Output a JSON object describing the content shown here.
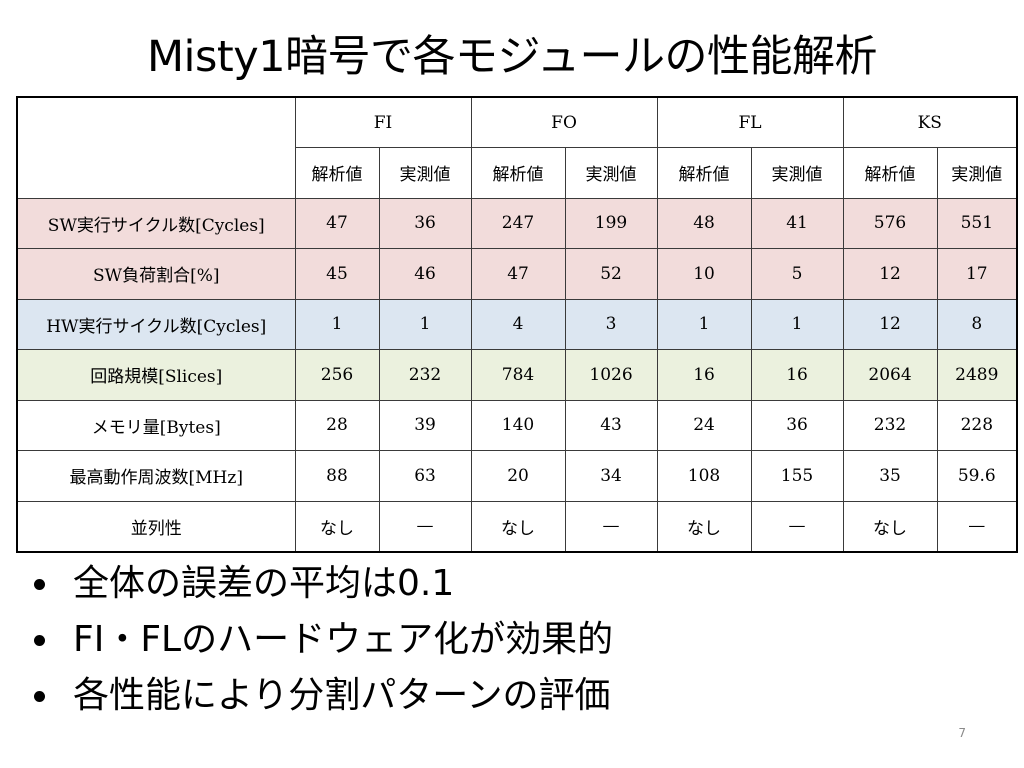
{
  "slide": {
    "title": "Misty1暗号で各モジュールの性能解析",
    "page_number": "7"
  },
  "table": {
    "modules": [
      "FI",
      "FO",
      "FL",
      "KS"
    ],
    "sub_headers": [
      "解析値",
      "実測値"
    ],
    "rows": [
      {
        "label": "SW実行サイクル数[Cycles]",
        "values": [
          "47",
          "36",
          "247",
          "199",
          "48",
          "41",
          "576",
          "551"
        ]
      },
      {
        "label": "SW負荷割合[%]",
        "values": [
          "45",
          "46",
          "47",
          "52",
          "10",
          "5",
          "12",
          "17"
        ]
      },
      {
        "label": "HW実行サイクル数[Cycles]",
        "values": [
          "1",
          "1",
          "4",
          "3",
          "1",
          "1",
          "12",
          "8"
        ]
      },
      {
        "label": "回路規模[Slices]",
        "values": [
          "256",
          "232",
          "784",
          "1026",
          "16",
          "16",
          "2064",
          "2489"
        ]
      },
      {
        "label": "メモリ量[Bytes]",
        "values": [
          "28",
          "39",
          "140",
          "43",
          "24",
          "36",
          "232",
          "228"
        ]
      },
      {
        "label": "最高動作周波数[MHz]",
        "values": [
          "88",
          "63",
          "20",
          "34",
          "108",
          "155",
          "35",
          "59.6"
        ]
      },
      {
        "label": "並列性",
        "values": [
          "なし",
          "—",
          "なし",
          "—",
          "なし",
          "—",
          "なし",
          "—"
        ]
      }
    ],
    "row_colors": {
      "sw": "#f2dcdb",
      "hw": "#dce6f1",
      "area": "#ebf1de"
    }
  },
  "bullets": [
    "全体の誤差の平均は0.1",
    "FI・FLのハードウェア化が効果的",
    "各性能により分割パターンの評価"
  ]
}
